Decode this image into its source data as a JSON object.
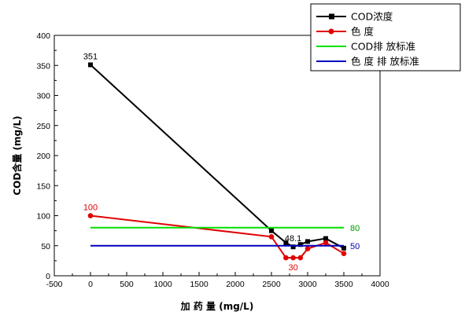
{
  "chart_data": {
    "type": "line",
    "xlabel": "加 药 量 (mg/L)",
    "ylabel": "COD含量 (mg/L)",
    "xlim": [
      -500,
      4000
    ],
    "ylim": [
      0,
      400
    ],
    "x_ticks": [
      -500,
      0,
      500,
      1000,
      1500,
      2000,
      2500,
      3000,
      3500,
      4000
    ],
    "y_ticks": [
      0,
      50,
      100,
      150,
      200,
      250,
      300,
      350,
      400
    ],
    "x_tick_labels": [
      "-500",
      "0",
      "500",
      "1000",
      "1500",
      "2000",
      "2500",
      "3000",
      "3500",
      "4000"
    ],
    "y_tick_labels": [
      "0",
      "50",
      "100",
      "150",
      "200",
      "250",
      "300",
      "350",
      "400"
    ],
    "legend_position": "top-right",
    "grid": false,
    "series": [
      {
        "name": "COD浓度",
        "color": "#000000",
        "marker": "square",
        "points": [
          [
            0,
            351
          ],
          [
            2500,
            75
          ],
          [
            2700,
            55
          ],
          [
            2800,
            48.1
          ],
          [
            2900,
            52
          ],
          [
            3000,
            57
          ],
          [
            3250,
            62
          ],
          [
            3500,
            46
          ]
        ]
      },
      {
        "name": "色 度",
        "color": "#e00000",
        "marker": "circle",
        "points": [
          [
            0,
            100
          ],
          [
            2500,
            65
          ],
          [
            2700,
            30
          ],
          [
            2800,
            30
          ],
          [
            2900,
            30
          ],
          [
            3000,
            45
          ],
          [
            3250,
            55
          ],
          [
            3500,
            37
          ]
        ]
      },
      {
        "name": "COD排 放标准",
        "color": "#00e000",
        "marker": "none",
        "points": [
          [
            0,
            80
          ],
          [
            3500,
            80
          ]
        ]
      },
      {
        "name": "色 度 排 放标准",
        "color": "#0000c0",
        "marker": "none",
        "points": [
          [
            0,
            50
          ],
          [
            3500,
            50
          ]
        ]
      }
    ],
    "annotations": [
      {
        "text": "351",
        "x": 0,
        "y": 351,
        "color": "#000000",
        "anchor": "above"
      },
      {
        "text": "100",
        "x": 0,
        "y": 100,
        "color": "#e00000",
        "anchor": "above"
      },
      {
        "text": "48.1",
        "x": 2800,
        "y": 48.1,
        "color": "#000000",
        "anchor": "above"
      },
      {
        "text": "30",
        "x": 2800,
        "y": 30,
        "color": "#e00000",
        "anchor": "below"
      },
      {
        "text": "80",
        "x": 3500,
        "y": 80,
        "color": "#00a000",
        "anchor": "right"
      },
      {
        "text": "50",
        "x": 3500,
        "y": 50,
        "color": "#0000c0",
        "anchor": "right"
      }
    ]
  }
}
